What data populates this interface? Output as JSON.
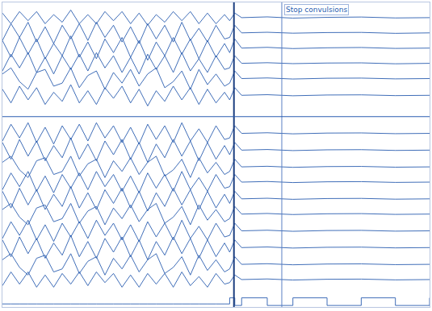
{
  "chart_data": {
    "type": "line",
    "color": "#2a5db0",
    "grid": false,
    "tick_labels": false,
    "xlim": [
      0,
      50
    ],
    "ylim": [
      0,
      20
    ],
    "x": [
      0,
      1,
      2,
      3,
      4,
      5,
      6,
      7,
      8,
      9,
      10,
      11,
      12,
      13,
      14,
      15,
      16,
      17,
      18,
      19,
      20,
      21,
      22,
      23,
      24,
      25,
      26,
      26.6,
      27.2,
      28,
      31,
      34,
      38,
      42,
      46,
      50
    ],
    "vlines": [
      27.1,
      32.7
    ],
    "hlines": [
      12.5
    ],
    "annotations": [
      {
        "x": 33.0,
        "y": 19.5,
        "text": "Stop convulsions"
      }
    ],
    "series": [
      {
        "values": [
          19.3,
          18.6,
          19.4,
          18.8,
          19.4,
          18.6,
          19.2,
          18.7,
          19.5,
          18.6,
          19.2,
          18.6,
          19.4,
          18.8,
          19.4,
          18.6,
          19.3,
          18.5,
          19.2,
          18.7,
          19.4,
          18.8,
          19.4,
          18.6,
          19.3,
          18.6,
          19.2,
          18.8,
          19.3,
          19.0,
          19.05,
          18.97,
          19.02,
          19.04,
          18.98,
          19.0
        ]
      },
      {
        "values": [
          17.5,
          18.6,
          17.7,
          18.7,
          17.4,
          18.4,
          17.3,
          18.5,
          17.6,
          18.6,
          17.5,
          18.7,
          17.7,
          18.5,
          17.4,
          18.4,
          17.3,
          18.6,
          17.6,
          18.5,
          17.4,
          18.7,
          17.5,
          18.3,
          17.4,
          18.5,
          17.6,
          17.7,
          18.5,
          18.0,
          18.04,
          17.98,
          18.02,
          18.03,
          17.97,
          18.0
        ]
      },
      {
        "values": [
          17.5,
          16.4,
          17.7,
          16.6,
          17.6,
          16.3,
          17.3,
          16.5,
          17.8,
          16.4,
          17.4,
          16.3,
          17.6,
          16.7,
          17.7,
          16.4,
          17.5,
          16.2,
          17.4,
          16.5,
          17.7,
          16.6,
          17.6,
          16.3,
          17.5,
          16.4,
          17.3,
          16.7,
          17.6,
          17.0,
          17.05,
          16.97,
          17.02,
          17.04,
          16.98,
          17.0
        ]
      },
      {
        "values": [
          15.5,
          16.6,
          15.7,
          16.7,
          15.4,
          16.4,
          15.3,
          16.5,
          15.6,
          16.6,
          15.5,
          16.7,
          15.7,
          16.5,
          15.4,
          16.4,
          15.3,
          16.6,
          15.6,
          16.5,
          15.4,
          16.7,
          15.5,
          16.3,
          15.4,
          16.5,
          15.6,
          15.7,
          16.5,
          16.0,
          16.04,
          15.98,
          16.02,
          16.03,
          15.97,
          16.0
        ]
      },
      {
        "values": [
          15.3,
          15.7,
          14.8,
          14.3,
          15.4,
          15.6,
          14.5,
          14.7,
          15.7,
          14.4,
          15.2,
          15.5,
          14.3,
          15.4,
          14.7,
          15.6,
          14.5,
          15.3,
          15.7,
          14.4,
          14.8,
          15.5,
          14.3,
          15.6,
          14.6,
          15.3,
          14.5,
          14.7,
          15.5,
          15.0,
          15.04,
          14.97,
          15.02,
          15.03,
          14.98,
          15.0
        ]
      },
      {
        "values": [
          14.3,
          13.4,
          14.5,
          13.6,
          14.4,
          13.3,
          14.1,
          13.5,
          14.6,
          13.4,
          14.2,
          13.3,
          14.4,
          13.7,
          14.5,
          13.4,
          14.3,
          13.2,
          14.2,
          13.5,
          14.5,
          13.6,
          14.4,
          13.3,
          14.3,
          13.4,
          14.1,
          13.6,
          14.4,
          13.9,
          13.94,
          13.87,
          13.92,
          13.93,
          13.88,
          13.9
        ]
      },
      {
        "values": [
          10.9,
          12.0,
          11.1,
          12.1,
          10.8,
          11.8,
          10.7,
          11.9,
          11.0,
          12.0,
          10.9,
          12.1,
          11.1,
          11.9,
          10.8,
          11.8,
          10.7,
          12.0,
          11.0,
          11.9,
          10.8,
          12.1,
          10.9,
          11.7,
          10.8,
          11.9,
          11.0,
          11.1,
          11.9,
          11.4,
          11.44,
          11.37,
          11.42,
          11.43,
          11.38,
          11.4
        ]
      },
      {
        "values": [
          10.8,
          9.7,
          11.0,
          9.9,
          10.9,
          9.6,
          10.6,
          9.8,
          11.1,
          9.7,
          10.7,
          9.6,
          10.9,
          10.0,
          11.0,
          9.7,
          10.8,
          9.5,
          10.7,
          9.8,
          11.0,
          9.9,
          10.9,
          9.6,
          10.8,
          9.7,
          10.6,
          10.0,
          10.8,
          10.3,
          10.34,
          10.27,
          10.32,
          10.33,
          10.28,
          10.3
        ]
      },
      {
        "values": [
          9.5,
          9.9,
          9.0,
          8.5,
          9.6,
          9.8,
          8.7,
          8.9,
          9.9,
          8.6,
          9.4,
          9.7,
          8.5,
          9.6,
          8.9,
          9.8,
          8.7,
          9.5,
          9.9,
          8.6,
          9.0,
          9.7,
          8.5,
          9.8,
          8.8,
          9.5,
          8.7,
          8.9,
          9.7,
          9.2,
          9.24,
          9.17,
          9.22,
          9.23,
          9.18,
          9.2
        ]
      },
      {
        "values": [
          7.7,
          8.8,
          7.9,
          8.9,
          7.6,
          8.6,
          7.5,
          8.7,
          7.8,
          8.8,
          7.7,
          8.9,
          7.9,
          8.7,
          7.6,
          8.6,
          7.5,
          8.8,
          7.8,
          8.7,
          7.6,
          8.9,
          7.7,
          8.5,
          7.6,
          8.7,
          7.8,
          7.9,
          8.7,
          8.2,
          8.24,
          8.17,
          8.22,
          8.23,
          8.18,
          8.2
        ]
      },
      {
        "values": [
          7.6,
          6.5,
          7.8,
          6.7,
          7.7,
          6.4,
          7.4,
          6.6,
          7.9,
          6.5,
          7.5,
          6.4,
          7.7,
          6.8,
          7.8,
          6.5,
          7.6,
          6.3,
          7.5,
          6.6,
          7.8,
          6.7,
          7.7,
          6.4,
          7.6,
          6.5,
          7.4,
          6.8,
          7.6,
          7.1,
          7.14,
          7.07,
          7.12,
          7.13,
          7.08,
          7.1
        ]
      },
      {
        "values": [
          6.4,
          6.8,
          5.9,
          5.4,
          6.5,
          6.7,
          5.6,
          5.8,
          6.8,
          5.5,
          6.3,
          6.6,
          5.4,
          6.5,
          5.8,
          6.7,
          5.6,
          6.4,
          6.8,
          5.5,
          5.9,
          6.6,
          5.4,
          6.7,
          5.7,
          6.4,
          5.6,
          5.8,
          6.6,
          6.1,
          6.14,
          6.07,
          6.12,
          6.13,
          6.08,
          6.1
        ]
      },
      {
        "values": [
          4.5,
          5.6,
          4.7,
          5.7,
          4.4,
          5.4,
          4.3,
          5.5,
          4.6,
          5.6,
          4.5,
          5.7,
          4.7,
          5.5,
          4.4,
          5.4,
          4.3,
          5.6,
          4.6,
          5.5,
          4.4,
          5.7,
          4.5,
          5.3,
          4.4,
          5.5,
          4.6,
          4.7,
          5.5,
          5.0,
          5.04,
          4.97,
          5.02,
          5.03,
          4.98,
          5.0
        ]
      },
      {
        "values": [
          4.4,
          3.3,
          4.6,
          3.5,
          4.5,
          3.2,
          4.2,
          3.4,
          4.7,
          3.3,
          4.3,
          3.2,
          4.5,
          3.6,
          4.6,
          3.3,
          4.4,
          3.1,
          4.3,
          3.4,
          4.6,
          3.5,
          4.5,
          3.2,
          4.4,
          3.3,
          4.2,
          3.6,
          4.4,
          3.9,
          3.94,
          3.87,
          3.92,
          3.93,
          3.88,
          3.9
        ]
      },
      {
        "values": [
          3.1,
          3.5,
          2.6,
          2.1,
          3.2,
          3.4,
          2.3,
          2.5,
          3.5,
          2.2,
          3.0,
          3.3,
          2.1,
          3.2,
          2.5,
          3.4,
          2.3,
          3.1,
          3.5,
          2.2,
          2.6,
          3.3,
          2.1,
          3.4,
          2.4,
          3.1,
          2.3,
          2.5,
          3.3,
          2.8,
          2.84,
          2.77,
          2.82,
          2.83,
          2.78,
          2.8
        ]
      },
      {
        "values": [
          1.4,
          2.3,
          1.5,
          2.3,
          1.3,
          2.1,
          1.3,
          2.2,
          1.5,
          2.3,
          1.4,
          2.3,
          1.6,
          2.2,
          1.3,
          2.1,
          1.3,
          2.2,
          1.5,
          2.2,
          1.3,
          2.3,
          1.4,
          2.0,
          1.3,
          2.2,
          1.5,
          1.6,
          2.1,
          1.8,
          1.84,
          1.77,
          1.82,
          1.83,
          1.78,
          1.8
        ]
      },
      {
        "line_style": "step",
        "values": [
          0.2,
          0.2,
          0.2,
          0.2,
          0.2,
          0.2,
          0.2,
          0.2,
          0.2,
          0.2,
          0.2,
          0.2,
          0.2,
          0.2,
          0.2,
          0.2,
          0.2,
          0.2,
          0.2,
          0.2,
          0.2,
          0.2,
          0.2,
          0.2,
          0.2,
          0.2,
          0.2,
          0.6,
          0.1,
          0.6,
          0.1,
          0.6,
          0.1,
          0.6,
          0.1,
          0.6
        ]
      }
    ]
  }
}
